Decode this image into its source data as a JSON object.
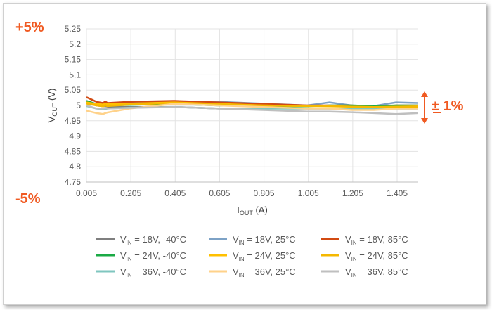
{
  "annotations": {
    "plus": "+5%",
    "minus": "-5%",
    "band": "± 1%",
    "color": "#f05a22"
  },
  "chart_data": {
    "type": "line",
    "title": "",
    "xlabel": "I",
    "xlabel_sub": "OUT",
    "xlabel_unit": " (A)",
    "ylabel": "V",
    "ylabel_sub": "OUT",
    "ylabel_unit": " (V)",
    "xlim": [
      0.005,
      1.5
    ],
    "ylim": [
      4.75,
      5.25
    ],
    "xticks": [
      "0.005",
      "0.205",
      "0.405",
      "0.605",
      "0.805",
      "1.005",
      "1.205",
      "1.405"
    ],
    "yticks": [
      "4.75",
      "4.8",
      "4.85",
      "4.9",
      "4.95",
      "5",
      "5.05",
      "5.1",
      "5.15",
      "5.2",
      "5.25"
    ],
    "grid": true,
    "legend": "bottom",
    "x": [
      0.005,
      0.05,
      0.08,
      0.09,
      0.1,
      0.2,
      0.4,
      0.6,
      0.8,
      1.0,
      1.1,
      1.2,
      1.3,
      1.4,
      1.5
    ],
    "series": [
      {
        "name": "V_IN = 18V, -40°C",
        "color": "#7f7f7f",
        "values": [
          5.01,
          5.0,
          4.997,
          4.998,
          4.996,
          4.995,
          4.995,
          4.99,
          4.99,
          4.99,
          4.99,
          4.99,
          4.99,
          4.99,
          4.99
        ]
      },
      {
        "name": "V_IN = 18V, 25°C",
        "color": "#7da2c6",
        "values": [
          5.015,
          5.005,
          5.003,
          5.005,
          5.003,
          5.008,
          5.012,
          5.012,
          5.006,
          5.0,
          5.01,
          5.0,
          4.998,
          5.01,
          5.008
        ]
      },
      {
        "name": "V_IN = 18V, 85°C",
        "color": "#d24a12",
        "values": [
          5.027,
          5.012,
          5.008,
          5.013,
          5.008,
          5.012,
          5.015,
          5.01,
          5.005,
          5.0,
          5.0,
          5.0,
          4.993,
          5.0,
          5.0
        ]
      },
      {
        "name": "V_IN = 24V, -40°C",
        "color": "#1aaa45",
        "values": [
          5.015,
          5.004,
          5.0,
          5.002,
          5.0,
          5.002,
          5.005,
          5.0,
          4.998,
          4.997,
          5.0,
          5.0,
          4.998,
          5.0,
          5.0
        ]
      },
      {
        "name": "V_IN = 24V, 25°C",
        "color": "#ffc000",
        "values": [
          5.01,
          5.005,
          5.003,
          5.006,
          5.004,
          5.006,
          5.01,
          5.005,
          5.0,
          4.998,
          4.997,
          4.996,
          4.995,
          4.996,
          4.997
        ]
      },
      {
        "name": "V_IN = 24V, 85°C",
        "color": "#f5b800",
        "values": [
          5.006,
          5.0,
          4.997,
          5.0,
          4.998,
          5.003,
          5.008,
          5.004,
          5.0,
          4.998,
          4.998,
          4.996,
          4.995,
          4.995,
          4.996
        ]
      },
      {
        "name": "V_IN = 36V, -40°C",
        "color": "#7fc6bf",
        "values": [
          4.998,
          4.99,
          4.987,
          4.988,
          4.99,
          4.993,
          4.995,
          4.99,
          4.99,
          4.99,
          4.99,
          4.99,
          4.99,
          4.99,
          4.99
        ]
      },
      {
        "name": "V_IN = 36V, 25°C",
        "color": "#ffd28a",
        "values": [
          4.983,
          4.975,
          4.972,
          4.975,
          4.977,
          4.99,
          5.005,
          5.0,
          4.995,
          4.99,
          4.99,
          4.985,
          4.985,
          4.99,
          4.99
        ]
      },
      {
        "name": "V_IN = 36V, 85°C",
        "color": "#bfbfbf",
        "values": [
          5.0,
          4.99,
          4.99,
          4.991,
          4.99,
          4.992,
          4.995,
          4.99,
          4.985,
          4.98,
          4.98,
          4.978,
          4.975,
          4.972,
          4.975
        ]
      }
    ]
  }
}
